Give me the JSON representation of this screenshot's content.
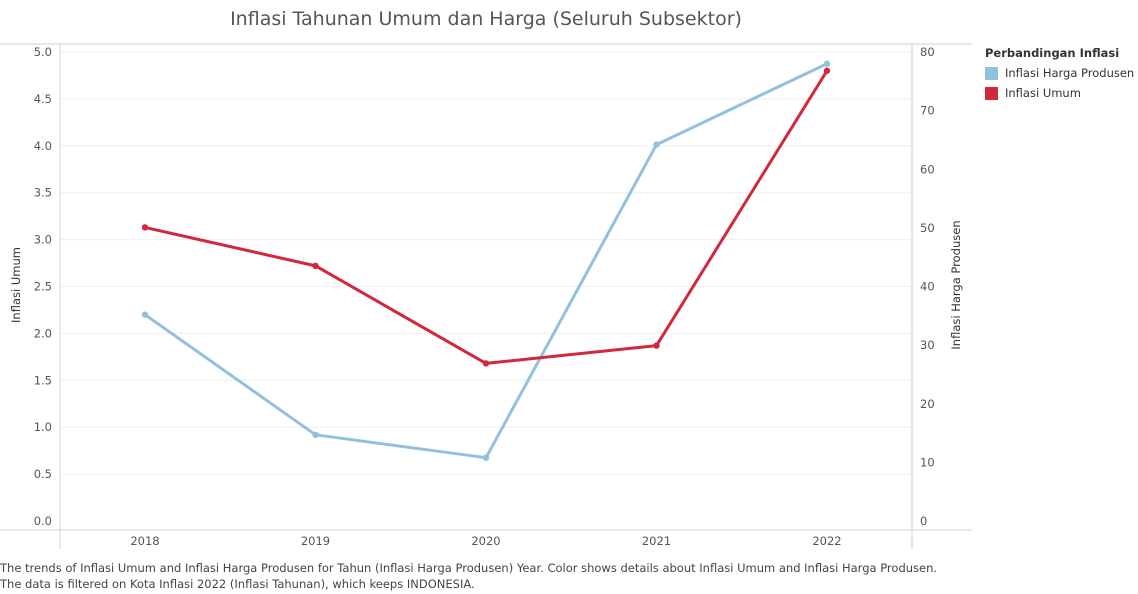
{
  "chart_data": {
    "type": "line",
    "title": "Inflasi Tahunan Umum dan Harga (Seluruh Subsektor)",
    "categories": [
      "2018",
      "2019",
      "2020",
      "2021",
      "2022"
    ],
    "series": [
      {
        "name": "Inflasi Harga Produsen",
        "axis": "right",
        "color": "#92c1de",
        "values": [
          35.2,
          14.7,
          10.8,
          64.2,
          78.0
        ]
      },
      {
        "name": "Inflasi Umum",
        "axis": "left",
        "color": "#d1283d",
        "values": [
          3.13,
          2.72,
          1.68,
          1.87,
          4.8
        ]
      }
    ],
    "y_left": {
      "label": "Inflasi Umum",
      "range": [
        0,
        5.0
      ],
      "ticks": [
        "0.0",
        "0.5",
        "1.0",
        "1.5",
        "2.0",
        "2.5",
        "3.0",
        "3.5",
        "4.0",
        "4.5",
        "5.0"
      ]
    },
    "y_right": {
      "label": "Inflasi Harga Produsen",
      "range": [
        0,
        80
      ],
      "ticks": [
        "0",
        "10",
        "20",
        "30",
        "40",
        "50",
        "60",
        "70",
        "80"
      ]
    },
    "grid": true,
    "legend": {
      "title": "Perbandingan Inflasi",
      "position": "right",
      "items": [
        "Inflasi Harga Produsen",
        "Inflasi Umum"
      ]
    }
  },
  "caption": "The trends of Inflasi Umum and Inflasi Harga Produsen for Tahun (Inflasi Harga Produsen) Year.  Color shows details about Inflasi Umum and Inflasi Harga Produsen. The data is filtered on Kota Inflasi 2022 (Inflasi Tahunan), which keeps INDONESIA."
}
